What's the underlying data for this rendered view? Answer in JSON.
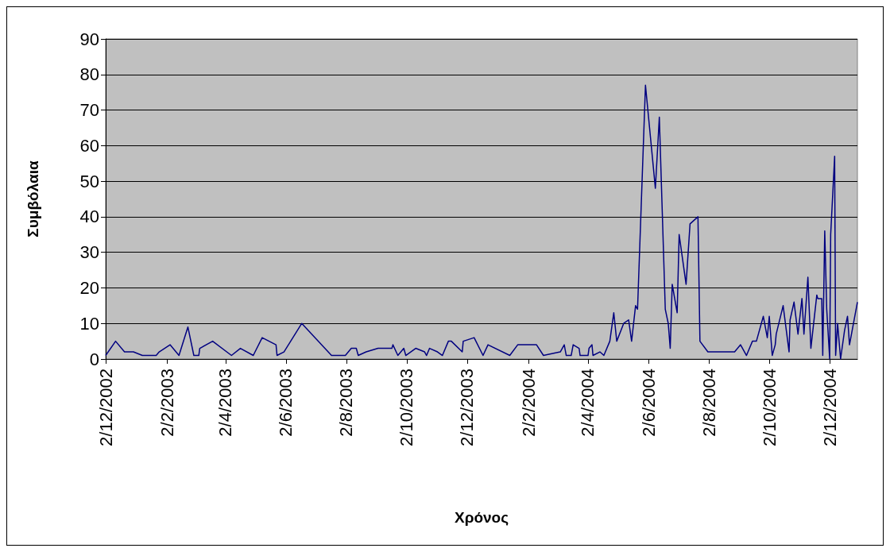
{
  "chart_data": {
    "type": "line",
    "xlabel": "Χρόνος",
    "ylabel": "Συμβόλαια",
    "grid": "y",
    "marker": "none",
    "line_style": "solid",
    "xlim": [
      "2002-12-02",
      "2004-12-30"
    ],
    "ylim": [
      0,
      90
    ],
    "yticks": [
      0,
      10,
      20,
      30,
      40,
      50,
      60,
      70,
      80,
      90
    ],
    "xticks": [
      {
        "value": "2002-12-02",
        "label": "2/12/2002"
      },
      {
        "value": "2003-02-02",
        "label": "2/2/2003"
      },
      {
        "value": "2003-04-02",
        "label": "2/4/2003"
      },
      {
        "value": "2003-06-02",
        "label": "2/6/2003"
      },
      {
        "value": "2003-08-02",
        "label": "2/8/2003"
      },
      {
        "value": "2003-10-02",
        "label": "2/10/2003"
      },
      {
        "value": "2003-12-02",
        "label": "2/12/2003"
      },
      {
        "value": "2004-02-02",
        "label": "2/2/2004"
      },
      {
        "value": "2004-04-02",
        "label": "2/4/2004"
      },
      {
        "value": "2004-06-02",
        "label": "2/6/2004"
      },
      {
        "value": "2004-08-02",
        "label": "2/8/2004"
      },
      {
        "value": "2004-10-02",
        "label": "2/10/2004"
      },
      {
        "value": "2004-12-02",
        "label": "2/12/2004"
      }
    ],
    "series": [
      {
        "color": "#000080",
        "x": [
          "2002-12-02",
          "2002-12-12",
          "2002-12-21",
          "2002-12-30",
          "2003-01-08",
          "2003-01-22",
          "2003-01-25",
          "2003-02-05",
          "2003-02-14",
          "2003-02-23",
          "2003-03-01",
          "2003-03-06",
          "2003-03-07",
          "2003-03-20",
          "2003-04-08",
          "2003-04-17",
          "2003-04-30",
          "2003-05-09",
          "2003-05-23",
          "2003-05-24",
          "2003-05-31",
          "2003-06-18",
          "2003-07-18",
          "2003-08-01",
          "2003-08-07",
          "2003-08-12",
          "2003-08-14",
          "2003-08-22",
          "2003-09-03",
          "2003-09-17",
          "2003-09-18",
          "2003-09-23",
          "2003-09-29",
          "2003-10-01",
          "2003-10-11",
          "2003-10-20",
          "2003-10-22",
          "2003-10-25",
          "2003-11-02",
          "2003-11-07",
          "2003-11-13",
          "2003-11-16",
          "2003-11-27",
          "2003-11-28",
          "2003-12-09",
          "2003-12-18",
          "2003-12-23",
          "2004-01-14",
          "2004-01-22",
          "2004-02-10",
          "2004-02-17",
          "2004-03-05",
          "2004-03-09",
          "2004-03-11",
          "2004-03-16",
          "2004-03-18",
          "2004-03-24",
          "2004-03-25",
          "2004-04-02",
          "2004-04-03",
          "2004-04-06",
          "2004-04-07",
          "2004-04-14",
          "2004-04-18",
          "2004-04-24",
          "2004-04-28",
          "2004-05-01",
          "2004-05-08",
          "2004-05-13",
          "2004-05-16",
          "2004-05-20",
          "2004-05-22",
          "2004-05-30",
          "2004-06-09",
          "2004-06-13",
          "2004-06-19",
          "2004-06-22",
          "2004-06-24",
          "2004-06-26",
          "2004-07-01",
          "2004-07-03",
          "2004-07-10",
          "2004-07-14",
          "2004-07-22",
          "2004-07-24",
          "2004-08-01",
          "2004-08-28",
          "2004-09-03",
          "2004-09-09",
          "2004-09-15",
          "2004-09-19",
          "2004-09-26",
          "2004-09-30",
          "2004-10-02",
          "2004-10-05",
          "2004-10-08",
          "2004-10-09",
          "2004-10-16",
          "2004-10-22",
          "2004-10-23",
          "2004-10-27",
          "2004-10-31",
          "2004-11-04",
          "2004-11-06",
          "2004-11-10",
          "2004-11-13",
          "2004-11-19",
          "2004-11-20",
          "2004-11-24",
          "2004-11-25",
          "2004-11-27",
          "2004-11-29",
          "2004-12-02",
          "2004-12-03",
          "2004-12-07",
          "2004-12-08",
          "2004-12-10",
          "2004-12-13",
          "2004-12-17",
          "2004-12-20",
          "2004-12-22",
          "2004-12-30"
        ],
        "values": [
          1,
          5,
          2,
          2,
          1,
          1,
          2,
          4,
          1,
          9,
          1,
          1,
          3,
          5,
          1,
          3,
          1,
          6,
          4,
          1,
          2,
          10,
          1,
          1,
          3,
          3,
          1,
          2,
          3,
          3,
          4,
          1,
          3,
          1,
          3,
          2,
          1,
          3,
          2,
          1,
          5,
          5,
          2,
          5,
          6,
          1,
          4,
          1,
          4,
          4,
          1,
          2,
          4,
          1,
          1,
          4,
          3,
          1,
          1,
          3,
          4,
          1,
          2,
          1,
          5,
          13,
          5,
          10,
          11,
          5,
          15,
          14,
          77,
          48,
          68,
          14,
          10,
          3,
          21,
          13,
          35,
          21,
          38,
          40,
          5,
          2,
          2,
          4,
          1,
          5,
          5,
          12,
          6,
          12,
          1,
          4,
          7,
          15,
          2,
          11,
          16,
          7,
          17,
          7,
          23,
          3,
          18,
          17,
          17,
          1,
          36,
          14,
          0,
          35,
          57,
          1,
          10,
          0,
          8,
          12,
          4,
          16
        ]
      }
    ]
  }
}
